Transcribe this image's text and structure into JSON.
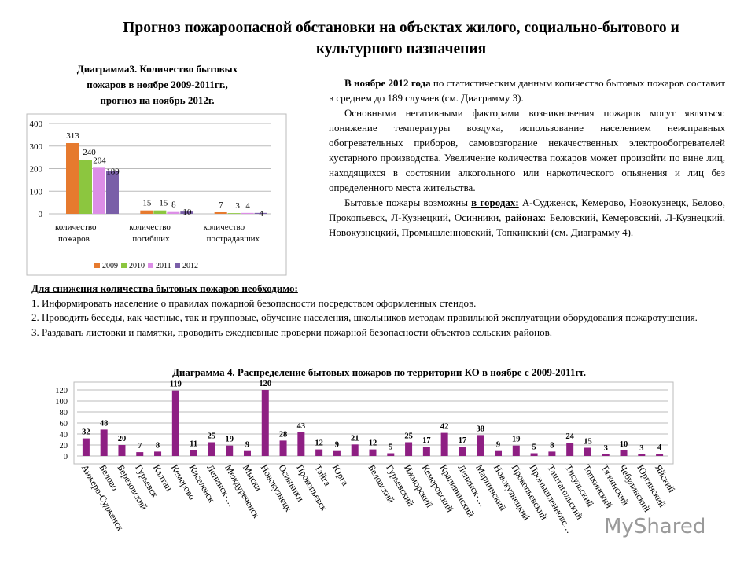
{
  "title": "Прогноз пожароопасной обстановки на объектах жилого, социально-бытового и культурного назначения",
  "chart_data": [
    {
      "type": "bar",
      "title": "Диаграмма3. Количество бытовых пожаров в ноябре 2009-2011гг., прогноз на ноябрь 2012г.",
      "categories": [
        "количество пожаров",
        "количество погибших",
        "количество пострадавших"
      ],
      "series": [
        {
          "name": "2009",
          "color": "#e67a2e",
          "values": [
            313,
            15,
            7
          ]
        },
        {
          "name": "2010",
          "color": "#8cc63f",
          "values": [
            240,
            15,
            3
          ]
        },
        {
          "name": "2011",
          "color": "#dc8ee6",
          "values": [
            204,
            8,
            4
          ]
        },
        {
          "name": "2012",
          "color": "#7a5fa8",
          "values": [
            189,
            10,
            4
          ]
        }
      ],
      "ylim": [
        0,
        400
      ],
      "yticks": [
        0,
        100,
        200,
        300,
        400
      ],
      "grid": true,
      "legend": "bottom"
    },
    {
      "type": "bar",
      "title": "Диаграмма 4. Распределение бытовых пожаров по территории КО в ноябре с 2009-2011гг.",
      "categories": [
        "Анжеро-Судженск",
        "Белово",
        "Березовский",
        "Гурьевск",
        "Калтан",
        "Кемерово",
        "Киселевск",
        "Ленинск-…",
        "Междуреченск",
        "Мыски",
        "Новокузнецк",
        "Осинники",
        "Прокопьевск",
        "Тайга",
        "Юрга",
        null,
        "Беловский",
        "Гурьевский",
        "Ижморский",
        "Кемеровский",
        "Крапивинский",
        "Ленинск-…",
        "Мариинский",
        "Новокузнецкий",
        "Прокопьевский",
        "Промышленновс…",
        "Таштагольский",
        "Тисульский",
        "Топкинский",
        "Тяжинский",
        "Чебулинский",
        "Юргинский",
        "Яйский"
      ],
      "values": [
        32,
        48,
        20,
        7,
        8,
        119,
        11,
        25,
        19,
        9,
        120,
        28,
        43,
        12,
        9,
        21,
        12,
        5,
        25,
        17,
        42,
        17,
        38,
        9,
        19,
        5,
        8,
        24,
        15,
        3,
        10,
        3,
        4
      ],
      "color": "#8e1f83",
      "ylim": [
        0,
        120
      ],
      "yticks": [
        0,
        20,
        40,
        60,
        80,
        100,
        120
      ],
      "grid": true
    }
  ],
  "text": {
    "paragraphs": [
      [
        "В ноябре 2012 года",
        " по статистическим данным количество бытовых пожаров составит в среднем до 189 случаев (см. Диаграмму 3)."
      ],
      [
        "Основными негативными факторами возникновения пожаров могут являться: понижение температуры воздуха, использование населением неисправных обогревательных приборов, самовозгорание некачественных электрообогревателей кустарного производства. Увеличение количества пожаров может произойти по вине лиц, находящихся в состоянии алкогольного или наркотического опьянения и лиц без определенного места жительства."
      ],
      [
        "Бытовые пожары возможны ",
        "в городах:",
        " А-Судженск, Кемерово, Новокузнецк, Белово, Прокопьевск, Л-Кузнецкий, Осинники, ",
        "районах",
        ": Беловский, Кемеровский, Л-Кузнецкий, Новокузнецкий, Промышленновский, Топкинский (см. Диаграмму 4)."
      ]
    ]
  },
  "measures": {
    "heading": "Для снижения количества бытовых пожаров необходимо:",
    "items": [
      "1. Информировать население о правилах пожарной безопасности посредством оформленных стендов.",
      "2. Проводить беседы, как частные, так и групповые, обучение населения, школьников методам правильной эксплуатации оборудования пожаротушения.",
      "3. Раздавать листовки и памятки, проводить ежедневные проверки пожарной безопасности объектов сельских районов."
    ]
  },
  "watermark": "MyShared"
}
